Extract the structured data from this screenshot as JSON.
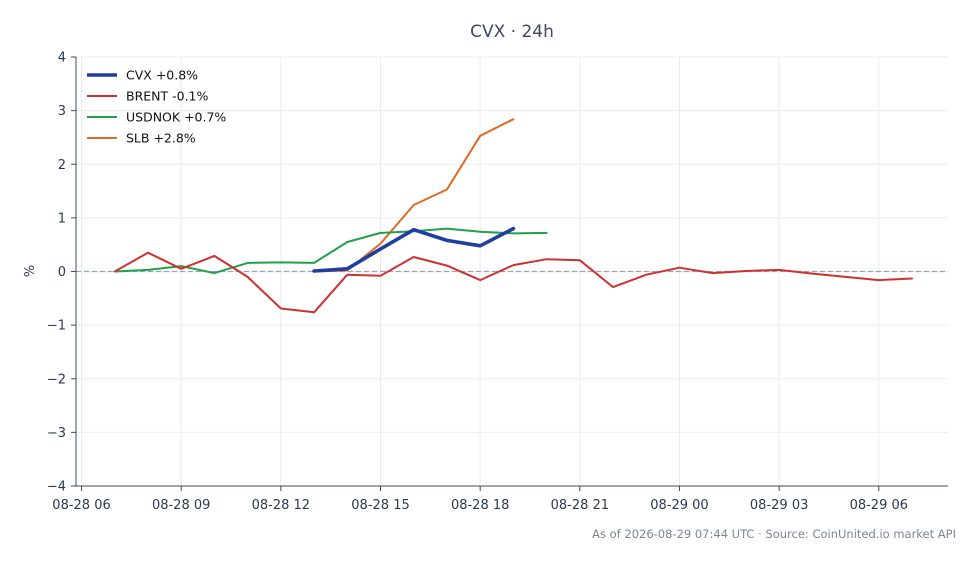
{
  "chart_data": {
    "type": "line",
    "title": "CVX · 24h",
    "ylabel": "%",
    "xlabel": "",
    "ylim": [
      -4,
      4
    ],
    "yticks": [
      -4,
      -3,
      -2,
      -1,
      0,
      1,
      2,
      3,
      4
    ],
    "ytick_labels": [
      "−4",
      "−3",
      "−2",
      "−1",
      "0",
      "1",
      "2",
      "3",
      "4"
    ],
    "xlim": [
      "2026-08-28 05:50",
      "2026-08-29 08:05"
    ],
    "xticks": [
      "2026-08-28 06:00",
      "2026-08-28 09:00",
      "2026-08-28 12:00",
      "2026-08-28 15:00",
      "2026-08-28 18:00",
      "2026-08-28 21:00",
      "2026-08-29 00:00",
      "2026-08-29 03:00",
      "2026-08-29 06:00"
    ],
    "xtick_labels": [
      "08-28 06",
      "08-28 09",
      "08-28 12",
      "08-28 15",
      "08-28 18",
      "08-28 21",
      "08-29 00",
      "08-29 03",
      "08-29 06"
    ],
    "grid": true,
    "zero_line": true,
    "legend_position": "top-left",
    "series": [
      {
        "name": "CVX +0.8%",
        "color": "#1f3fa0",
        "x": [
          "2026-08-28 13:00",
          "2026-08-28 14:00",
          "2026-08-28 15:00",
          "2026-08-28 16:00",
          "2026-08-28 17:00",
          "2026-08-28 18:00",
          "2026-08-28 19:00"
        ],
        "y": [
          0.01,
          0.05,
          0.42,
          0.78,
          0.58,
          0.48,
          0.8
        ]
      },
      {
        "name": "BRENT -0.1%",
        "color": "#d0302f",
        "x": [
          "2026-08-28 07:00",
          "2026-08-28 08:00",
          "2026-08-28 09:00",
          "2026-08-28 10:00",
          "2026-08-28 11:00",
          "2026-08-28 12:00",
          "2026-08-28 13:00",
          "2026-08-28 14:00",
          "2026-08-28 15:00",
          "2026-08-28 16:00",
          "2026-08-28 17:00",
          "2026-08-28 18:00",
          "2026-08-28 19:00",
          "2026-08-28 20:00",
          "2026-08-28 21:00",
          "2026-08-28 22:00",
          "2026-08-28 23:00",
          "2026-08-29 00:00",
          "2026-08-29 01:00",
          "2026-08-29 02:00",
          "2026-08-29 03:00",
          "2026-08-29 04:00",
          "2026-08-29 05:00",
          "2026-08-29 06:00",
          "2026-08-29 07:00"
        ],
        "y": [
          0.0,
          0.35,
          0.05,
          0.29,
          -0.1,
          -0.69,
          -0.76,
          -0.06,
          -0.08,
          0.27,
          0.11,
          -0.16,
          0.12,
          0.23,
          0.21,
          -0.29,
          -0.06,
          0.07,
          -0.03,
          0.01,
          0.03,
          -0.04,
          -0.1,
          -0.16,
          -0.13
        ]
      },
      {
        "name": "USDNOK +0.7%",
        "color": "#22a04a",
        "x": [
          "2026-08-28 07:00",
          "2026-08-28 08:00",
          "2026-08-28 09:00",
          "2026-08-28 10:00",
          "2026-08-28 11:00",
          "2026-08-28 12:00",
          "2026-08-28 13:00",
          "2026-08-28 14:00",
          "2026-08-28 15:00",
          "2026-08-28 16:00",
          "2026-08-28 17:00",
          "2026-08-28 18:00",
          "2026-08-28 19:00",
          "2026-08-28 20:00"
        ],
        "y": [
          0.0,
          0.03,
          0.1,
          -0.03,
          0.16,
          0.17,
          0.16,
          0.55,
          0.72,
          0.75,
          0.8,
          0.74,
          0.71,
          0.72
        ]
      },
      {
        "name": "SLB +2.8%",
        "color": "#e06a22",
        "x": [
          "2026-08-28 13:00",
          "2026-08-28 14:00",
          "2026-08-28 15:00",
          "2026-08-28 16:00",
          "2026-08-28 17:00",
          "2026-08-28 18:00",
          "2026-08-28 19:00"
        ],
        "y": [
          0.0,
          0.02,
          0.52,
          1.24,
          1.53,
          2.53,
          2.84
        ]
      }
    ],
    "footer": "As of 2026-08-29 07:44 UTC · Source: CoinUnited.io market API"
  }
}
